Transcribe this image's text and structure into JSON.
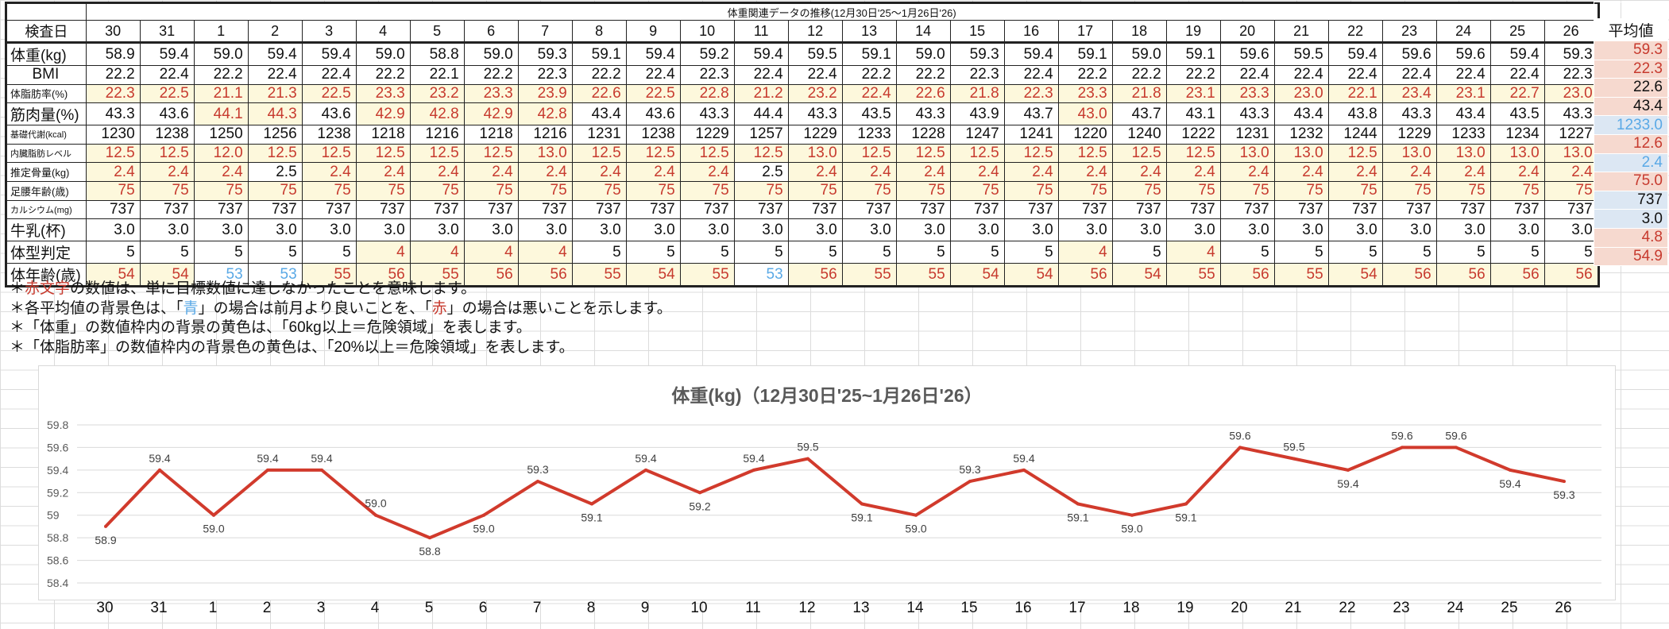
{
  "table": {
    "title": "体重関連データの推移(12月30日'25～1月26日'26)",
    "header_label": "検査日",
    "avg_label": "平均値",
    "dates": [
      "30",
      "31",
      "1",
      "2",
      "3",
      "4",
      "5",
      "6",
      "7",
      "8",
      "9",
      "10",
      "11",
      "12",
      "13",
      "14",
      "15",
      "16",
      "17",
      "18",
      "19",
      "20",
      "21",
      "22",
      "23",
      "24",
      "25",
      "26"
    ],
    "rows": [
      {
        "label": "体重(kg)",
        "size": "",
        "values": [
          "58.9",
          "59.4",
          "59.0",
          "59.4",
          "59.4",
          "59.0",
          "58.8",
          "59.0",
          "59.3",
          "59.1",
          "59.4",
          "59.2",
          "59.4",
          "59.5",
          "59.1",
          "59.0",
          "59.3",
          "59.4",
          "59.1",
          "59.0",
          "59.1",
          "59.6",
          "59.5",
          "59.4",
          "59.6",
          "59.6",
          "59.4",
          "59.3"
        ],
        "red": [],
        "blue": [],
        "yellow": [],
        "avg": "59.3",
        "avg_bg": "bad",
        "avg_color": "red"
      },
      {
        "label": "BMI",
        "size": "",
        "values": [
          "22.2",
          "22.4",
          "22.2",
          "22.4",
          "22.4",
          "22.2",
          "22.1",
          "22.2",
          "22.3",
          "22.2",
          "22.4",
          "22.3",
          "22.4",
          "22.4",
          "22.2",
          "22.2",
          "22.3",
          "22.4",
          "22.2",
          "22.2",
          "22.2",
          "22.4",
          "22.4",
          "22.4",
          "22.4",
          "22.4",
          "22.4",
          "22.3"
        ],
        "red": [],
        "blue": [],
        "yellow": [],
        "avg": "22.3",
        "avg_bg": "bad",
        "avg_color": "red",
        "label_center": true
      },
      {
        "label": "体脂肪率(%)",
        "size": "small",
        "values": [
          "22.3",
          "22.5",
          "21.1",
          "21.3",
          "22.5",
          "23.3",
          "23.2",
          "23.3",
          "23.9",
          "22.6",
          "22.5",
          "22.8",
          "21.2",
          "23.2",
          "22.4",
          "22.6",
          "21.8",
          "22.3",
          "23.3",
          "21.8",
          "23.1",
          "23.3",
          "23.0",
          "22.1",
          "23.4",
          "23.1",
          "22.7",
          "23.0"
        ],
        "red": "all",
        "blue": [],
        "yellow": "all",
        "avg": "22.6",
        "avg_bg": "bad",
        "avg_color": ""
      },
      {
        "label": "筋肉量(%)",
        "size": "",
        "values": [
          "43.3",
          "43.6",
          "44.1",
          "44.3",
          "43.6",
          "42.9",
          "42.8",
          "42.9",
          "42.8",
          "43.4",
          "43.6",
          "43.3",
          "44.4",
          "43.3",
          "43.5",
          "43.3",
          "43.9",
          "43.7",
          "43.0",
          "43.7",
          "43.1",
          "43.3",
          "43.4",
          "43.8",
          "43.3",
          "43.4",
          "43.5",
          "43.3"
        ],
        "red": [
          2,
          3,
          5,
          6,
          7,
          8,
          18
        ],
        "blue": [],
        "yellow": [
          2,
          3,
          5,
          6,
          7,
          8,
          18
        ],
        "avg": "43.4",
        "avg_bg": "bad",
        "avg_color": ""
      },
      {
        "label": "基礎代謝(kcal)",
        "size": "tiny",
        "values": [
          "1230",
          "1238",
          "1250",
          "1256",
          "1238",
          "1218",
          "1216",
          "1218",
          "1216",
          "1231",
          "1238",
          "1229",
          "1257",
          "1229",
          "1233",
          "1228",
          "1247",
          "1241",
          "1220",
          "1240",
          "1222",
          "1231",
          "1232",
          "1244",
          "1229",
          "1233",
          "1234",
          "1227"
        ],
        "red": [],
        "blue": [],
        "yellow": [],
        "avg": "1233.0",
        "avg_bg": "good",
        "avg_color": "blue"
      },
      {
        "label": "内臓脂肪レベル",
        "size": "tiny",
        "values": [
          "12.5",
          "12.5",
          "12.0",
          "12.5",
          "12.5",
          "12.5",
          "12.5",
          "12.5",
          "13.0",
          "12.5",
          "12.5",
          "12.5",
          "12.5",
          "13.0",
          "12.5",
          "12.5",
          "12.5",
          "12.5",
          "12.5",
          "12.5",
          "12.5",
          "13.0",
          "13.0",
          "12.5",
          "13.0",
          "13.0",
          "13.0",
          "13.0"
        ],
        "red": "all",
        "blue": [],
        "yellow": "all",
        "avg": "12.6",
        "avg_bg": "bad",
        "avg_color": "red"
      },
      {
        "label": "推定骨量(kg)",
        "size": "small",
        "values": [
          "2.4",
          "2.4",
          "2.4",
          "2.5",
          "2.4",
          "2.4",
          "2.4",
          "2.4",
          "2.4",
          "2.4",
          "2.4",
          "2.4",
          "2.5",
          "2.4",
          "2.4",
          "2.4",
          "2.4",
          "2.4",
          "2.4",
          "2.4",
          "2.4",
          "2.4",
          "2.4",
          "2.4",
          "2.4",
          "2.4",
          "2.4",
          "2.4"
        ],
        "red": [
          0,
          1,
          2,
          4,
          5,
          6,
          7,
          8,
          9,
          10,
          11,
          13,
          14,
          15,
          16,
          17,
          18,
          19,
          20,
          21,
          22,
          23,
          24,
          25,
          26,
          27
        ],
        "blue": [],
        "yellow": [
          0,
          1,
          2,
          4,
          5,
          6,
          7,
          8,
          9,
          10,
          11,
          13,
          14,
          15,
          16,
          17,
          18,
          19,
          20,
          21,
          22,
          23,
          24,
          25,
          26,
          27
        ],
        "avg": "2.4",
        "avg_bg": "good",
        "avg_color": "blue"
      },
      {
        "label": "足腰年齢(歳)",
        "size": "small",
        "values": [
          "75",
          "75",
          "75",
          "75",
          "75",
          "75",
          "75",
          "75",
          "75",
          "75",
          "75",
          "75",
          "75",
          "75",
          "75",
          "75",
          "75",
          "75",
          "75",
          "75",
          "75",
          "75",
          "75",
          "75",
          "75",
          "75",
          "75",
          "75"
        ],
        "red": "all",
        "blue": [],
        "yellow": "all",
        "avg": "75.0",
        "avg_bg": "bad",
        "avg_color": "red"
      },
      {
        "label": "カルシウム(mg)",
        "size": "tiny",
        "values": [
          "737",
          "737",
          "737",
          "737",
          "737",
          "737",
          "737",
          "737",
          "737",
          "737",
          "737",
          "737",
          "737",
          "737",
          "737",
          "737",
          "737",
          "737",
          "737",
          "737",
          "737",
          "737",
          "737",
          "737",
          "737",
          "737",
          "737",
          "737"
        ],
        "red": [],
        "blue": [],
        "yellow": [],
        "avg": "737",
        "avg_bg": "good",
        "avg_color": ""
      },
      {
        "label": "牛乳(杯)",
        "size": "",
        "values": [
          "3.0",
          "3.0",
          "3.0",
          "3.0",
          "3.0",
          "3.0",
          "3.0",
          "3.0",
          "3.0",
          "3.0",
          "3.0",
          "3.0",
          "3.0",
          "3.0",
          "3.0",
          "3.0",
          "3.0",
          "3.0",
          "3.0",
          "3.0",
          "3.0",
          "3.0",
          "3.0",
          "3.0",
          "3.0",
          "3.0",
          "3.0",
          "3.0"
        ],
        "red": [],
        "blue": [],
        "yellow": [],
        "avg": "3.0",
        "avg_bg": "good",
        "avg_color": ""
      },
      {
        "label": "体型判定",
        "size": "",
        "values": [
          "5",
          "5",
          "5",
          "5",
          "5",
          "4",
          "4",
          "4",
          "4",
          "5",
          "5",
          "5",
          "5",
          "5",
          "5",
          "5",
          "5",
          "5",
          "4",
          "5",
          "4",
          "5",
          "5",
          "5",
          "5",
          "5",
          "5",
          "5"
        ],
        "red": [
          5,
          6,
          7,
          8,
          18,
          20
        ],
        "blue": [],
        "yellow": [
          5,
          6,
          7,
          8,
          18,
          20
        ],
        "avg": "4.8",
        "avg_bg": "bad",
        "avg_color": "red"
      },
      {
        "label": "体年齢(歳)",
        "size": "",
        "values": [
          "54",
          "54",
          "53",
          "53",
          "55",
          "56",
          "55",
          "56",
          "56",
          "55",
          "54",
          "55",
          "53",
          "56",
          "55",
          "55",
          "54",
          "54",
          "56",
          "54",
          "55",
          "56",
          "55",
          "54",
          "56",
          "56",
          "56",
          "56"
        ],
        "red": [
          0,
          1,
          4,
          5,
          6,
          7,
          8,
          9,
          10,
          11,
          13,
          14,
          15,
          16,
          17,
          18,
          19,
          20,
          21,
          22,
          23,
          24,
          25,
          26,
          27
        ],
        "blue": [
          2,
          3,
          12
        ],
        "yellow": [
          0,
          1,
          4,
          5,
          6,
          7,
          8,
          9,
          10,
          11,
          13,
          14,
          15,
          16,
          17,
          18,
          19,
          20,
          21,
          22,
          23,
          24,
          25,
          26,
          27
        ],
        "avg": "54.9",
        "avg_bg": "bad",
        "avg_color": "red"
      }
    ]
  },
  "notes": [
    {
      "parts": [
        {
          "t": "＊",
          "c": ""
        },
        {
          "t": "赤文字",
          "c": "rd"
        },
        {
          "t": "の数値は、単に目標数値に達しなかったことを意味します。",
          "c": ""
        }
      ]
    },
    {
      "parts": [
        {
          "t": "＊各平均値の背景色は、「",
          "c": ""
        },
        {
          "t": "青",
          "c": "bl"
        },
        {
          "t": "」の場合は前月より良いことを、「",
          "c": ""
        },
        {
          "t": "赤",
          "c": "rd"
        },
        {
          "t": "」の場合は悪いことを示します。",
          "c": ""
        }
      ]
    },
    {
      "parts": [
        {
          "t": "＊「体重」の数値枠内の背景の黄色は、「60kg以上＝危険領域」を表します。",
          "c": ""
        }
      ]
    },
    {
      "parts": [
        {
          "t": "＊「体脂肪率」の数値枠内の背景色の黄色は、「20%以上＝危険領域」を表します。",
          "c": ""
        }
      ]
    }
  ],
  "colors": {
    "line": "#d13a2c",
    "red_text": "#c73a2e",
    "blue_text": "#5aa9e6",
    "yellow_bg": "#fdf8dc",
    "bad_bg": "#f6d9cf",
    "good_bg": "#dce7f3"
  },
  "chart_data": {
    "type": "line",
    "title": "体重(kg)（12月30日'25~1月26日'26）",
    "categories": [
      "30",
      "31",
      "1",
      "2",
      "3",
      "4",
      "5",
      "6",
      "7",
      "8",
      "9",
      "10",
      "11",
      "12",
      "13",
      "14",
      "15",
      "16",
      "17",
      "18",
      "19",
      "20",
      "21",
      "22",
      "23",
      "24",
      "25",
      "26"
    ],
    "values": [
      58.9,
      59.4,
      59.0,
      59.4,
      59.4,
      59.0,
      58.8,
      59.0,
      59.3,
      59.1,
      59.4,
      59.2,
      59.4,
      59.5,
      59.1,
      59.0,
      59.3,
      59.4,
      59.1,
      59.0,
      59.1,
      59.6,
      59.5,
      59.4,
      59.6,
      59.6,
      59.4,
      59.3
    ],
    "data_labels": [
      "58.9",
      "59.4",
      "59.0",
      "59.4",
      "59.4",
      "59.0",
      "58.8",
      "59.0",
      "59.3",
      "59.1",
      "59.4",
      "59.2",
      "59.4",
      "59.5",
      "59.1",
      "59.0",
      "59.3",
      "59.4",
      "59.1",
      "59.0",
      "59.1",
      "59.6",
      "59.5",
      "59.4",
      "59.6",
      "59.6",
      "59.4",
      "59.3"
    ],
    "label_position": [
      "below",
      "above",
      "below",
      "above",
      "above",
      "above",
      "below",
      "below",
      "above",
      "below",
      "above",
      "below",
      "above",
      "above",
      "below",
      "below",
      "above",
      "above",
      "below",
      "below",
      "below",
      "above",
      "above",
      "below",
      "above",
      "above",
      "below",
      "below"
    ],
    "yticks": [
      "58.4",
      "58.6",
      "58.8",
      "59",
      "59.2",
      "59.4",
      "59.6",
      "59.8"
    ],
    "ylim": [
      58.4,
      59.8
    ],
    "grid": true,
    "xlabel": "",
    "ylabel": ""
  }
}
